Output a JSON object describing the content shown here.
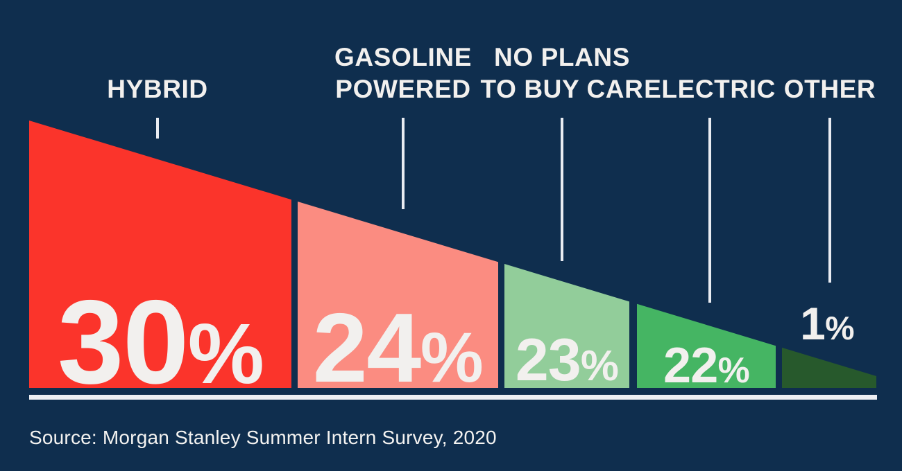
{
  "chart_data": {
    "type": "bar",
    "title": "",
    "categories": [
      "HYBRID",
      "GASOLINE POWERED",
      "NO PLANS TO BUY CAR",
      "ELECTRIC",
      "OTHER"
    ],
    "label_lines": [
      [
        "HYBRID"
      ],
      [
        "GASOLINE",
        "POWERED"
      ],
      [
        "NO PLANS",
        "TO BUY CAR"
      ],
      [
        "ELECTRIC"
      ],
      [
        "OTHER"
      ]
    ],
    "values": [
      30,
      24,
      23,
      22,
      1
    ],
    "unit": "%",
    "series_colors": [
      "#fb342b",
      "#fb8c81",
      "#92cd9a",
      "#45b563",
      "#27592c"
    ],
    "background_color": "#0f2e4e",
    "value_color": "#f2f0ee",
    "baseline_color": "#edeff3",
    "legend_position": "none",
    "axes": "none",
    "source": "Source: Morgan Stanley Summer Intern Survey, 2020"
  }
}
